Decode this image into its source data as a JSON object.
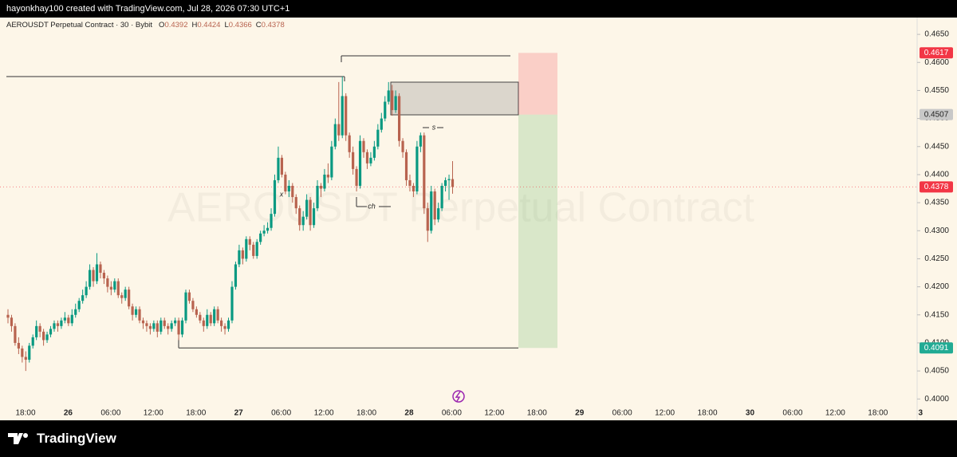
{
  "header": "hayonkhay100 created with TradingView.com, Jul 28, 2026 07:30 UTC+1",
  "footer": "TradingView",
  "chart_data": {
    "type": "candlestick",
    "symbol": "AEROUSDT Perpetual Contract · 30 · Bybit",
    "watermark": "AEROUSDT Perpetual Contract",
    "ohlc_labels": [
      "O",
      "H",
      "L",
      "C"
    ],
    "ohlc_values": [
      0.4392,
      0.4424,
      0.4366,
      0.4378
    ],
    "up_color": "#089981",
    "down_color": "#b8634f",
    "ylim": [
      0.3962,
      0.468
    ],
    "yticks": [
      {
        "value": 0.4,
        "label": "0.4000"
      },
      {
        "value": 0.405,
        "label": "0.4050"
      },
      {
        "value": 0.41,
        "label": "0.4100"
      },
      {
        "value": 0.415,
        "label": "0.4150"
      },
      {
        "value": 0.42,
        "label": "0.4200"
      },
      {
        "value": 0.425,
        "label": "0.4250"
      },
      {
        "value": 0.43,
        "label": "0.4300"
      },
      {
        "value": 0.435,
        "label": "0.4350"
      },
      {
        "value": 0.44,
        "label": "0.4400"
      },
      {
        "value": 0.445,
        "label": "0.4450"
      },
      {
        "value": 0.45,
        "label": "0.4500"
      },
      {
        "value": 0.455,
        "label": "0.4550"
      },
      {
        "value": 0.46,
        "label": "0.4600"
      },
      {
        "value": 0.465,
        "label": "0.4650"
      }
    ],
    "time_labels": [
      "18:00",
      "26",
      "06:00",
      "12:00",
      "18:00",
      "27",
      "06:00",
      "12:00",
      "18:00",
      "28",
      "06:00",
      "12:00",
      "18:00",
      "29",
      "06:00",
      "12:00",
      "18:00",
      "30",
      "06:00",
      "12:00",
      "18:00",
      "3"
    ],
    "annotations": [
      "ch",
      "s",
      "x"
    ],
    "position": {
      "stop": 0.4617,
      "entry": 0.4507,
      "target": 0.4091
    },
    "price_tags": [
      {
        "value": 0.4617,
        "color": "#f23645"
      },
      {
        "value": 0.4507,
        "color": "#c8c8c8"
      },
      {
        "value": 0.4378,
        "color": "#f23645"
      },
      {
        "value": 0.4091,
        "color": "#22ab94"
      }
    ],
    "candles": [
      [
        0.415,
        0.416,
        0.4135,
        0.4145
      ],
      [
        0.4145,
        0.415,
        0.412,
        0.413
      ],
      [
        0.413,
        0.4135,
        0.4095,
        0.41
      ],
      [
        0.41,
        0.411,
        0.408,
        0.409
      ],
      [
        0.409,
        0.4095,
        0.4065,
        0.4075
      ],
      [
        0.4075,
        0.4085,
        0.405,
        0.407
      ],
      [
        0.407,
        0.41,
        0.4065,
        0.4095
      ],
      [
        0.4095,
        0.4115,
        0.409,
        0.411
      ],
      [
        0.411,
        0.414,
        0.4105,
        0.413
      ],
      [
        0.413,
        0.4135,
        0.411,
        0.412
      ],
      [
        0.412,
        0.4125,
        0.4095,
        0.4105
      ],
      [
        0.4105,
        0.412,
        0.41,
        0.4115
      ],
      [
        0.4115,
        0.413,
        0.411,
        0.4125
      ],
      [
        0.4125,
        0.414,
        0.412,
        0.4135
      ],
      [
        0.4135,
        0.414,
        0.412,
        0.413
      ],
      [
        0.413,
        0.4145,
        0.4125,
        0.414
      ],
      [
        0.414,
        0.4155,
        0.4135,
        0.4145
      ],
      [
        0.4145,
        0.415,
        0.413,
        0.4135
      ],
      [
        0.4135,
        0.416,
        0.413,
        0.415
      ],
      [
        0.415,
        0.417,
        0.4145,
        0.416
      ],
      [
        0.416,
        0.418,
        0.4155,
        0.4175
      ],
      [
        0.4175,
        0.4195,
        0.417,
        0.4185
      ],
      [
        0.4185,
        0.421,
        0.418,
        0.42
      ],
      [
        0.42,
        0.424,
        0.4195,
        0.423
      ],
      [
        0.423,
        0.4235,
        0.42,
        0.421
      ],
      [
        0.421,
        0.426,
        0.4205,
        0.424
      ],
      [
        0.424,
        0.4245,
        0.4215,
        0.4225
      ],
      [
        0.4225,
        0.423,
        0.4205,
        0.4215
      ],
      [
        0.4215,
        0.422,
        0.419,
        0.42
      ],
      [
        0.42,
        0.421,
        0.4185,
        0.4195
      ],
      [
        0.4195,
        0.4215,
        0.419,
        0.421
      ],
      [
        0.421,
        0.4215,
        0.418,
        0.4185
      ],
      [
        0.4185,
        0.419,
        0.417,
        0.418
      ],
      [
        0.418,
        0.42,
        0.4175,
        0.4195
      ],
      [
        0.4195,
        0.42,
        0.416,
        0.4165
      ],
      [
        0.4165,
        0.417,
        0.414,
        0.415
      ],
      [
        0.415,
        0.4165,
        0.4145,
        0.416
      ],
      [
        0.416,
        0.4165,
        0.4135,
        0.414
      ],
      [
        0.414,
        0.4145,
        0.4125,
        0.4135
      ],
      [
        0.4135,
        0.414,
        0.412,
        0.413
      ],
      [
        0.413,
        0.4135,
        0.4115,
        0.4125
      ],
      [
        0.4125,
        0.414,
        0.412,
        0.4135
      ],
      [
        0.4135,
        0.414,
        0.411,
        0.412
      ],
      [
        0.412,
        0.4145,
        0.4115,
        0.414
      ],
      [
        0.414,
        0.4145,
        0.4125,
        0.413
      ],
      [
        0.413,
        0.4135,
        0.4115,
        0.4125
      ],
      [
        0.4125,
        0.414,
        0.412,
        0.4135
      ],
      [
        0.4135,
        0.4145,
        0.413,
        0.414
      ],
      [
        0.414,
        0.4145,
        0.4105,
        0.4115
      ],
      [
        0.4115,
        0.4145,
        0.411,
        0.414
      ],
      [
        0.414,
        0.4195,
        0.4135,
        0.419
      ],
      [
        0.419,
        0.4195,
        0.417,
        0.4175
      ],
      [
        0.4175,
        0.418,
        0.4155,
        0.416
      ],
      [
        0.416,
        0.4165,
        0.4145,
        0.415
      ],
      [
        0.415,
        0.4155,
        0.4135,
        0.414
      ],
      [
        0.414,
        0.4145,
        0.412,
        0.413
      ],
      [
        0.413,
        0.416,
        0.4125,
        0.415
      ],
      [
        0.415,
        0.4155,
        0.413,
        0.4135
      ],
      [
        0.4135,
        0.4165,
        0.413,
        0.416
      ],
      [
        0.416,
        0.4165,
        0.4135,
        0.414
      ],
      [
        0.414,
        0.4145,
        0.412,
        0.413
      ],
      [
        0.413,
        0.4135,
        0.4115,
        0.4125
      ],
      [
        0.4125,
        0.4145,
        0.412,
        0.414
      ],
      [
        0.414,
        0.421,
        0.4135,
        0.42
      ],
      [
        0.42,
        0.4245,
        0.4195,
        0.424
      ],
      [
        0.424,
        0.4275,
        0.4235,
        0.4265
      ],
      [
        0.4265,
        0.427,
        0.424,
        0.425
      ],
      [
        0.425,
        0.429,
        0.4245,
        0.4285
      ],
      [
        0.4285,
        0.429,
        0.4265,
        0.4275
      ],
      [
        0.4275,
        0.428,
        0.425,
        0.4255
      ],
      [
        0.4255,
        0.4285,
        0.425,
        0.428
      ],
      [
        0.428,
        0.43,
        0.4275,
        0.4295
      ],
      [
        0.4295,
        0.431,
        0.429,
        0.43
      ],
      [
        0.43,
        0.4315,
        0.4295,
        0.4305
      ],
      [
        0.4305,
        0.434,
        0.43,
        0.433
      ],
      [
        0.433,
        0.44,
        0.4325,
        0.439
      ],
      [
        0.439,
        0.445,
        0.4385,
        0.443
      ],
      [
        0.443,
        0.4435,
        0.4395,
        0.44
      ],
      [
        0.44,
        0.4405,
        0.4365,
        0.437
      ],
      [
        0.437,
        0.439,
        0.436,
        0.438
      ],
      [
        0.438,
        0.4385,
        0.435,
        0.436
      ],
      [
        0.436,
        0.4365,
        0.433,
        0.434
      ],
      [
        0.434,
        0.4345,
        0.43,
        0.431
      ],
      [
        0.431,
        0.4335,
        0.43,
        0.4325
      ],
      [
        0.4325,
        0.4365,
        0.432,
        0.4355
      ],
      [
        0.4355,
        0.436,
        0.43,
        0.431
      ],
      [
        0.431,
        0.435,
        0.4305,
        0.434
      ],
      [
        0.434,
        0.439,
        0.4335,
        0.438
      ],
      [
        0.438,
        0.4385,
        0.436,
        0.4375
      ],
      [
        0.4375,
        0.441,
        0.437,
        0.44
      ],
      [
        0.44,
        0.442,
        0.4385,
        0.4395
      ],
      [
        0.4395,
        0.446,
        0.439,
        0.445
      ],
      [
        0.445,
        0.45,
        0.4445,
        0.449
      ],
      [
        0.449,
        0.4565,
        0.446,
        0.447
      ],
      [
        0.447,
        0.4575,
        0.4465,
        0.454
      ],
      [
        0.454,
        0.4545,
        0.446,
        0.447
      ],
      [
        0.447,
        0.4475,
        0.443,
        0.444
      ],
      [
        0.444,
        0.445,
        0.44,
        0.441
      ],
      [
        0.441,
        0.4415,
        0.437,
        0.438
      ],
      [
        0.438,
        0.447,
        0.4375,
        0.446
      ],
      [
        0.446,
        0.4465,
        0.443,
        0.444
      ],
      [
        0.444,
        0.4445,
        0.441,
        0.442
      ],
      [
        0.442,
        0.444,
        0.4415,
        0.443
      ],
      [
        0.443,
        0.446,
        0.4425,
        0.445
      ],
      [
        0.445,
        0.449,
        0.4445,
        0.448
      ],
      [
        0.448,
        0.451,
        0.4475,
        0.45
      ],
      [
        0.45,
        0.454,
        0.4495,
        0.453
      ],
      [
        0.453,
        0.4565,
        0.4525,
        0.455
      ],
      [
        0.455,
        0.456,
        0.4505,
        0.4515
      ],
      [
        0.4515,
        0.455,
        0.451,
        0.454
      ],
      [
        0.454,
        0.4545,
        0.445,
        0.446
      ],
      [
        0.446,
        0.4465,
        0.443,
        0.444
      ],
      [
        0.444,
        0.4445,
        0.438,
        0.439
      ],
      [
        0.439,
        0.44,
        0.437,
        0.438
      ],
      [
        0.438,
        0.4385,
        0.436,
        0.437
      ],
      [
        0.437,
        0.446,
        0.4365,
        0.445
      ],
      [
        0.445,
        0.4475,
        0.444,
        0.447
      ],
      [
        0.447,
        0.4475,
        0.433,
        0.434
      ],
      [
        0.434,
        0.435,
        0.428,
        0.43
      ],
      [
        0.43,
        0.438,
        0.4295,
        0.437
      ],
      [
        0.437,
        0.4375,
        0.431,
        0.432
      ],
      [
        0.432,
        0.435,
        0.4315,
        0.434
      ],
      [
        0.434,
        0.4385,
        0.4335,
        0.438
      ],
      [
        0.438,
        0.4395,
        0.437,
        0.439
      ],
      [
        0.439,
        0.44,
        0.4355,
        0.4392
      ],
      [
        0.4392,
        0.4424,
        0.4366,
        0.4378
      ]
    ]
  }
}
